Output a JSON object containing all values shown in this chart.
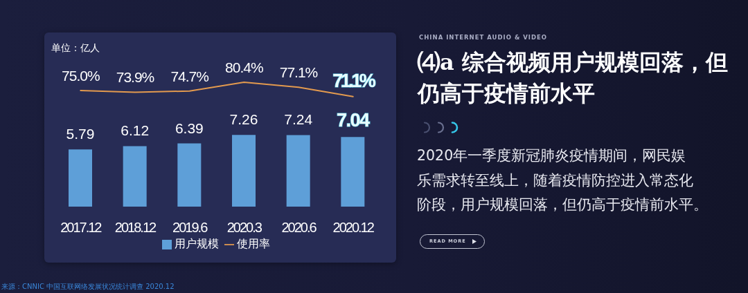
{
  "chart_data": [
    {
      "type": "bar",
      "annotations": [
        "单位：亿人",
        "来源：CNNIC 中国互联网络发展状况统计调查 2020.12"
      ],
      "categories": [
        "2017.12",
        "2018.12",
        "2019.6",
        "2020.3",
        "2020.6",
        "2020.12"
      ],
      "series": [
        {
          "name": "用户规模",
          "color": "#5e9fd8",
          "values": [
            5.79,
            6.12,
            6.39,
            7.26,
            7.24,
            7.04
          ],
          "value_labels": [
            "5.79",
            "6.12",
            "6.39",
            "7.26",
            "7.24",
            "7.04"
          ]
        }
      ],
      "legend": "bottom",
      "tick_labels": "x"
    },
    {
      "type": "line",
      "categories": [
        null,
        null,
        null,
        null,
        null,
        null
      ],
      "series": [
        {
          "name": "使用率",
          "color": "#e39a4e",
          "values": [
            75.0,
            73.9,
            74.7,
            80.4,
            77.1,
            71.1
          ],
          "value_labels": [
            "75.0%",
            "73.9%",
            "74.7%",
            "80.4%",
            "77.1%",
            "71.1%"
          ]
        }
      ],
      "legend": "bottom",
      "marker": "none",
      "tick_labels": false
    },
    {
      "type": "other",
      "title": "⑷a 综合视频用户规模回落，但仍高于疫情前水平",
      "subtitle": "CHINA INTERNET AUDIO & VIDEO",
      "annotations": [
        "2020年一季度新冠肺炎疫情期间，网民娱乐需求转至线上，随着疫情防控进入常态化阶段，用户规模回落，但仍高于疫情前水平。",
        "READ MORE"
      ]
    }
  ]
}
